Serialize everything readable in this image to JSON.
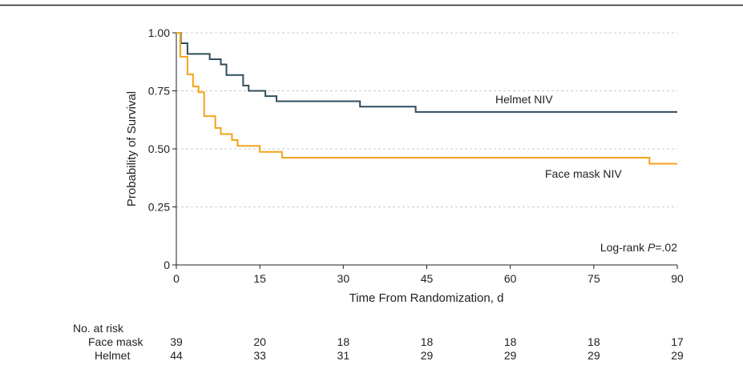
{
  "chart_data": {
    "type": "line",
    "title": "",
    "xlabel": "Time From Randomization, d",
    "ylabel": "Probability of Survival",
    "xlim": [
      0,
      90
    ],
    "ylim": [
      0,
      1
    ],
    "x_ticks": [
      0,
      15,
      30,
      45,
      60,
      75,
      90
    ],
    "x_tick_labels": [
      "0",
      "15",
      "30",
      "45",
      "60",
      "75",
      "90"
    ],
    "y_ticks": [
      0,
      0.25,
      0.5,
      0.75,
      1
    ],
    "y_tick_labels": [
      "0",
      "0.25",
      "0.50",
      "0.75",
      "1.00"
    ],
    "grid": "horizontal-dashed",
    "series": [
      {
        "name": "Helmet NIV",
        "color": "#2f4d5c",
        "steps": [
          [
            0,
            1.0
          ],
          [
            0.8,
            0.955
          ],
          [
            2,
            0.909
          ],
          [
            6,
            0.886
          ],
          [
            8,
            0.864
          ],
          [
            9,
            0.818
          ],
          [
            12,
            0.773
          ],
          [
            13,
            0.75
          ],
          [
            16,
            0.727
          ],
          [
            18,
            0.705
          ],
          [
            33,
            0.682
          ],
          [
            43,
            0.659
          ],
          [
            90,
            0.659
          ]
        ]
      },
      {
        "name": "Face mask NIV",
        "color": "#f2a31b",
        "steps": [
          [
            0,
            1.0
          ],
          [
            0.7,
            0.897
          ],
          [
            2,
            0.821
          ],
          [
            3,
            0.769
          ],
          [
            4,
            0.744
          ],
          [
            5,
            0.641
          ],
          [
            7,
            0.59
          ],
          [
            8,
            0.564
          ],
          [
            10,
            0.538
          ],
          [
            11,
            0.513
          ],
          [
            15,
            0.487
          ],
          [
            19,
            0.462
          ],
          [
            85,
            0.436
          ],
          [
            90,
            0.436
          ]
        ]
      }
    ],
    "annotations": {
      "helmet_label": "Helmet NIV",
      "facemask_label": "Face mask NIV",
      "logrank_prefix": "Log-rank ",
      "logrank_p": "P",
      "logrank_value": "=.02"
    },
    "risk_table": {
      "title": "No. at risk",
      "times": [
        0,
        15,
        30,
        45,
        60,
        75,
        90
      ],
      "rows": [
        {
          "label": "Face mask",
          "values": [
            "39",
            "20",
            "18",
            "18",
            "18",
            "18",
            "17"
          ]
        },
        {
          "label": "Helmet",
          "values": [
            "44",
            "33",
            "31",
            "29",
            "29",
            "29",
            "29"
          ]
        }
      ]
    }
  }
}
